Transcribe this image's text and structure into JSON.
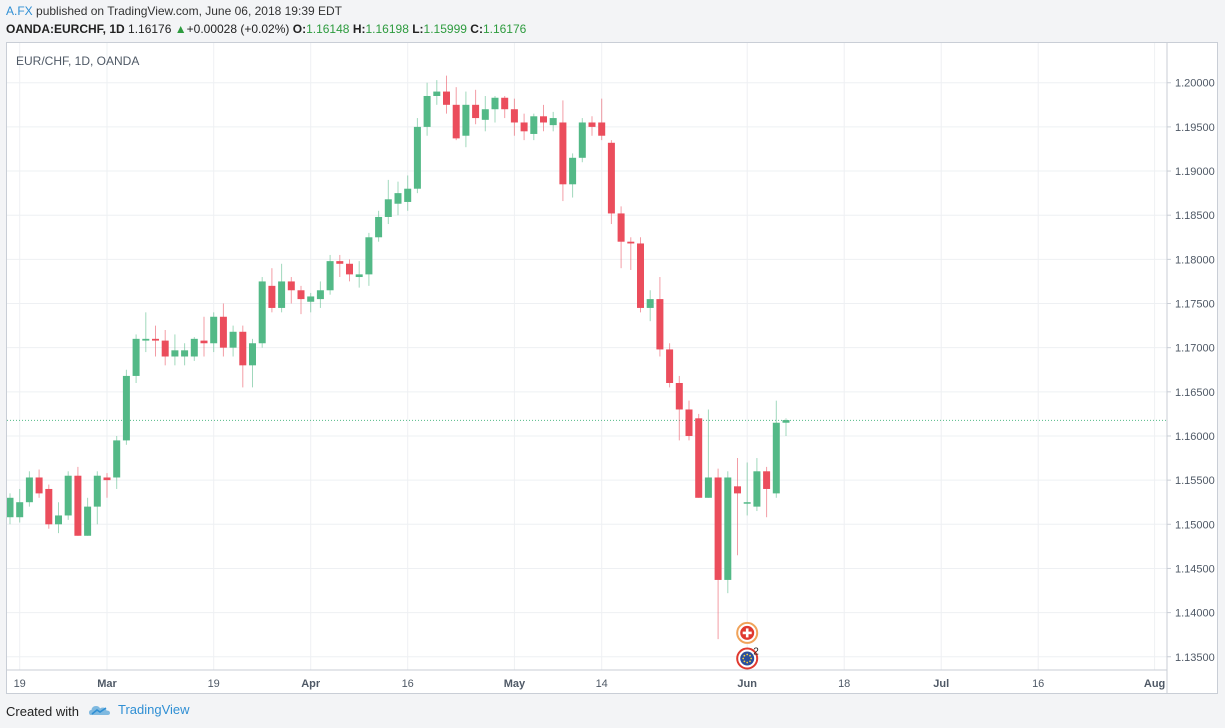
{
  "header": {
    "author": "A.FX",
    "published_text": "published on TradingView.com, June 06, 2018 19:39 EDT",
    "symbol": "OANDA:EURCHF, 1D",
    "last": "1.16176",
    "arrow": "▲",
    "change": "+0.00028 (+0.02%)",
    "o_label": "O:",
    "o_value": "1.16148",
    "h_label": "H:",
    "h_value": "1.16198",
    "l_label": "L:",
    "l_value": "1.15999",
    "c_label": "C:",
    "c_value": "1.16176"
  },
  "footer": {
    "created": "Created with",
    "brand": "TradingView"
  },
  "colors": {
    "up": "#53b987",
    "down": "#eb4d5c",
    "grid": "#eef0f3",
    "last_line": "#53b987",
    "axis_text": "#4f5966"
  },
  "chart_data": {
    "type": "candlestick",
    "title": "EUR/CHF, 1D, OANDA",
    "ylim": [
      1.1335,
      1.2045
    ],
    "y_ticks": [
      "1.13500",
      "1.14000",
      "1.14500",
      "1.15000",
      "1.15500",
      "1.16000",
      "1.16500",
      "1.17000",
      "1.17500",
      "1.18000",
      "1.18500",
      "1.19000",
      "1.19500",
      "1.20000"
    ],
    "x_ticks": [
      {
        "index": 1,
        "label": "19"
      },
      {
        "index": 10,
        "label": "Mar"
      },
      {
        "index": 21,
        "label": "19"
      },
      {
        "index": 31,
        "label": "Apr"
      },
      {
        "index": 41,
        "label": "16"
      },
      {
        "index": 52,
        "label": "May"
      },
      {
        "index": 61,
        "label": "14"
      },
      {
        "index": 76,
        "label": "Jun"
      },
      {
        "index": 86,
        "label": "18"
      },
      {
        "index": 96,
        "label": "Jul"
      },
      {
        "index": 106,
        "label": "16"
      },
      {
        "index": 118,
        "label": "Aug"
      }
    ],
    "last_price": 1.16176,
    "candles": [
      [
        1.1508,
        1.1535,
        1.15,
        1.153
      ],
      [
        1.1508,
        1.154,
        1.1502,
        1.1525
      ],
      [
        1.1525,
        1.156,
        1.152,
        1.1553
      ],
      [
        1.1553,
        1.1562,
        1.153,
        1.1535
      ],
      [
        1.154,
        1.1545,
        1.1495,
        1.15
      ],
      [
        1.15,
        1.1525,
        1.149,
        1.151
      ],
      [
        1.151,
        1.156,
        1.1505,
        1.1555
      ],
      [
        1.1555,
        1.1565,
        1.1487,
        1.1487
      ],
      [
        1.1487,
        1.153,
        1.1487,
        1.152
      ],
      [
        1.152,
        1.156,
        1.15,
        1.1555
      ],
      [
        1.1553,
        1.1558,
        1.153,
        1.155
      ],
      [
        1.1553,
        1.16,
        1.154,
        1.1595
      ],
      [
        1.1595,
        1.1675,
        1.159,
        1.1668
      ],
      [
        1.1668,
        1.1715,
        1.166,
        1.171
      ],
      [
        1.1708,
        1.174,
        1.1695,
        1.171
      ],
      [
        1.171,
        1.1725,
        1.169,
        1.1708
      ],
      [
        1.1708,
        1.172,
        1.168,
        1.169
      ],
      [
        1.169,
        1.1715,
        1.168,
        1.1697
      ],
      [
        1.169,
        1.1705,
        1.168,
        1.1697
      ],
      [
        1.169,
        1.1712,
        1.1685,
        1.171
      ],
      [
        1.1708,
        1.1735,
        1.169,
        1.1705
      ],
      [
        1.1705,
        1.174,
        1.1695,
        1.1735
      ],
      [
        1.1735,
        1.175,
        1.169,
        1.17
      ],
      [
        1.17,
        1.1725,
        1.169,
        1.1718
      ],
      [
        1.1718,
        1.1725,
        1.1655,
        1.168
      ],
      [
        1.168,
        1.171,
        1.1655,
        1.1705
      ],
      [
        1.1705,
        1.178,
        1.17,
        1.1775
      ],
      [
        1.177,
        1.179,
        1.174,
        1.1745
      ],
      [
        1.1745,
        1.1795,
        1.174,
        1.1775
      ],
      [
        1.1775,
        1.178,
        1.175,
        1.1765
      ],
      [
        1.1765,
        1.177,
        1.1738,
        1.1755
      ],
      [
        1.1752,
        1.1762,
        1.174,
        1.1758
      ],
      [
        1.1755,
        1.1775,
        1.1745,
        1.1765
      ],
      [
        1.1765,
        1.1805,
        1.176,
        1.1798
      ],
      [
        1.1798,
        1.1805,
        1.178,
        1.1795
      ],
      [
        1.1795,
        1.18,
        1.1775,
        1.1783
      ],
      [
        1.178,
        1.1798,
        1.1768,
        1.1783
      ],
      [
        1.1783,
        1.183,
        1.177,
        1.1825
      ],
      [
        1.1825,
        1.1855,
        1.182,
        1.1848
      ],
      [
        1.1848,
        1.189,
        1.184,
        1.1868
      ],
      [
        1.1863,
        1.1888,
        1.185,
        1.1875
      ],
      [
        1.1865,
        1.1895,
        1.1855,
        1.188
      ],
      [
        1.188,
        1.196,
        1.1875,
        1.195
      ],
      [
        1.195,
        1.2,
        1.194,
        1.1985
      ],
      [
        1.1985,
        1.2003,
        1.1975,
        1.199
      ],
      [
        1.199,
        1.2008,
        1.1965,
        1.1975
      ],
      [
        1.1975,
        1.1995,
        1.1935,
        1.1937
      ],
      [
        1.194,
        1.199,
        1.1927,
        1.1975
      ],
      [
        1.1975,
        1.1992,
        1.1953,
        1.196
      ],
      [
        1.1958,
        1.1985,
        1.1945,
        1.197
      ],
      [
        1.197,
        1.1985,
        1.1955,
        1.1983
      ],
      [
        1.1983,
        1.1985,
        1.196,
        1.197
      ],
      [
        1.197,
        1.1982,
        1.194,
        1.1955
      ],
      [
        1.1955,
        1.1965,
        1.1935,
        1.1945
      ],
      [
        1.1942,
        1.1965,
        1.1935,
        1.1962
      ],
      [
        1.1962,
        1.1975,
        1.1945,
        1.1955
      ],
      [
        1.1952,
        1.1967,
        1.1945,
        1.196
      ],
      [
        1.1955,
        1.198,
        1.1866,
        1.1885
      ],
      [
        1.1885,
        1.192,
        1.187,
        1.1915
      ],
      [
        1.1915,
        1.196,
        1.191,
        1.1955
      ],
      [
        1.1955,
        1.1962,
        1.194,
        1.195
      ],
      [
        1.1955,
        1.1982,
        1.1935,
        1.194
      ],
      [
        1.1932,
        1.1935,
        1.184,
        1.1852
      ],
      [
        1.1852,
        1.186,
        1.179,
        1.182
      ],
      [
        1.182,
        1.1825,
        1.1788,
        1.1818
      ],
      [
        1.1818,
        1.1825,
        1.174,
        1.1745
      ],
      [
        1.1745,
        1.1765,
        1.173,
        1.1755
      ],
      [
        1.1755,
        1.178,
        1.169,
        1.1698
      ],
      [
        1.1698,
        1.1705,
        1.1655,
        1.166
      ],
      [
        1.166,
        1.1668,
        1.1595,
        1.163
      ],
      [
        1.163,
        1.164,
        1.1595,
        1.16
      ],
      [
        1.162,
        1.1625,
        1.153,
        1.153
      ],
      [
        1.153,
        1.163,
        1.153,
        1.1553
      ],
      [
        1.1553,
        1.1563,
        1.137,
        1.1437
      ],
      [
        1.1437,
        1.156,
        1.1422,
        1.1553
      ],
      [
        1.1543,
        1.1575,
        1.1465,
        1.1535
      ],
      [
        1.1525,
        1.157,
        1.151,
        1.1525
      ],
      [
        1.152,
        1.1575,
        1.1515,
        1.156
      ],
      [
        1.156,
        1.1565,
        1.1508,
        1.154
      ],
      [
        1.1535,
        1.164,
        1.153,
        1.1615
      ],
      [
        1.1615,
        1.162,
        1.16,
        1.1618
      ]
    ],
    "events": [
      {
        "index": 76,
        "price": 1.1377,
        "kind": "flag-ch",
        "badge": ""
      },
      {
        "index": 76,
        "price": 1.1348,
        "kind": "flag-eu",
        "badge": "2"
      }
    ]
  }
}
